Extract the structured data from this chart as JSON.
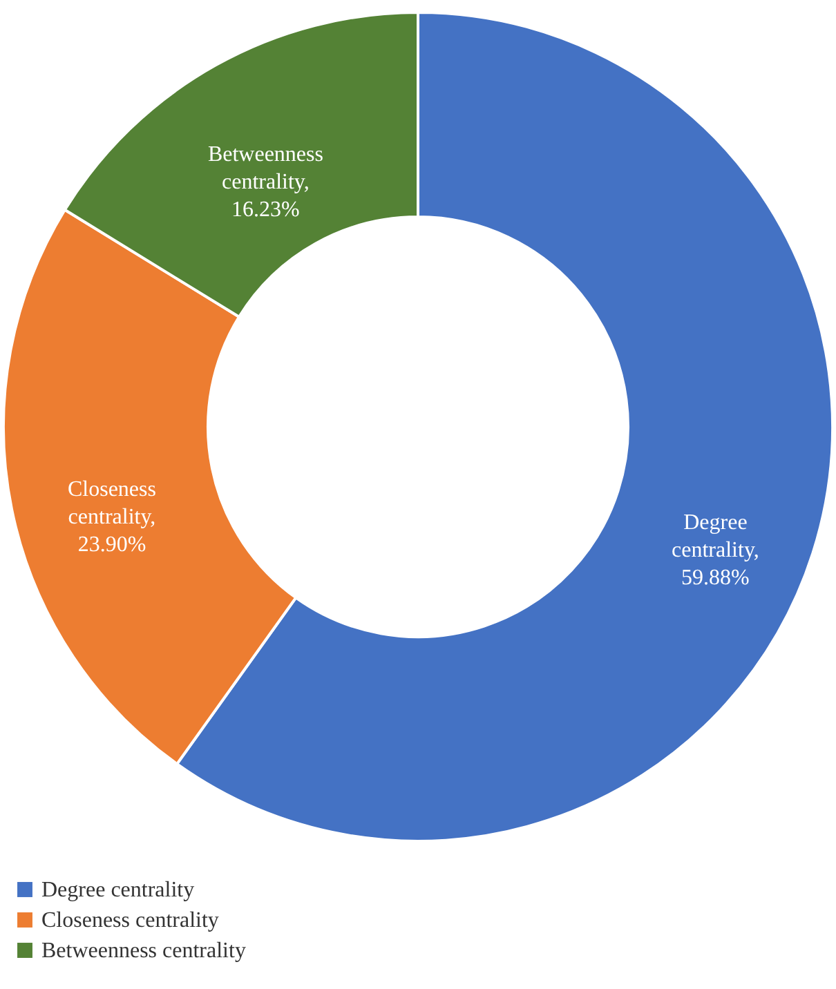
{
  "chart_data": {
    "type": "donut",
    "categories": [
      "Degree centrality",
      "Closeness centrality",
      "Betweenness centrality"
    ],
    "values": [
      59.88,
      23.9,
      16.23
    ],
    "colors": [
      "#4472c4",
      "#ed7d31",
      "#548235"
    ],
    "value_labels": [
      "Degree centrality, 59.88%",
      "Closeness centrality, 23.90%",
      "Betweenness centrality, 16.23%"
    ],
    "legend": "bottom"
  }
}
